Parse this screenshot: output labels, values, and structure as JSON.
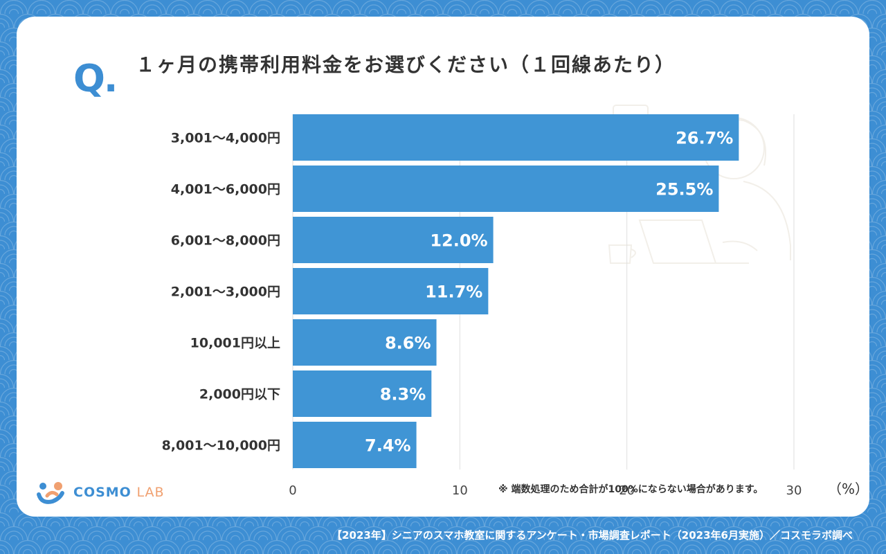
{
  "colors": {
    "bar": "#4095d5",
    "accent": "#3d8ed3",
    "background": "#3d8ed3",
    "text": "#333333"
  },
  "header": {
    "q_mark": "Q.",
    "title": "１ヶ月の携帯利用料金をお選びください（１回線あたり）"
  },
  "chart_data": {
    "type": "bar",
    "orientation": "horizontal",
    "categories": [
      "3,001〜4,000円",
      "4,001〜6,000円",
      "6,001〜8,000円",
      "2,001〜3,000円",
      "10,001円以上",
      "2,000円以下",
      "8,001〜10,000円"
    ],
    "values": [
      26.7,
      25.5,
      12.0,
      11.7,
      8.6,
      8.3,
      7.4
    ],
    "value_labels": [
      "26.7%",
      "25.5%",
      "12.0%",
      "11.7%",
      "8.6%",
      "8.3%",
      "7.4%"
    ],
    "xticks": [
      "0",
      "10",
      "20",
      "30"
    ],
    "xlim": [
      0,
      30
    ],
    "grid": true,
    "unit_label": "（%）",
    "note": "※ 端数処理のため合計が100%にならない場合があります。"
  },
  "logo": {
    "main": "COSMO",
    "sub": "LAB"
  },
  "footer": {
    "text": "【2023年】シニアのスマホ教室に関するアンケート・市場調査レポート（2023年6月実施）／コスモラボ調べ"
  }
}
